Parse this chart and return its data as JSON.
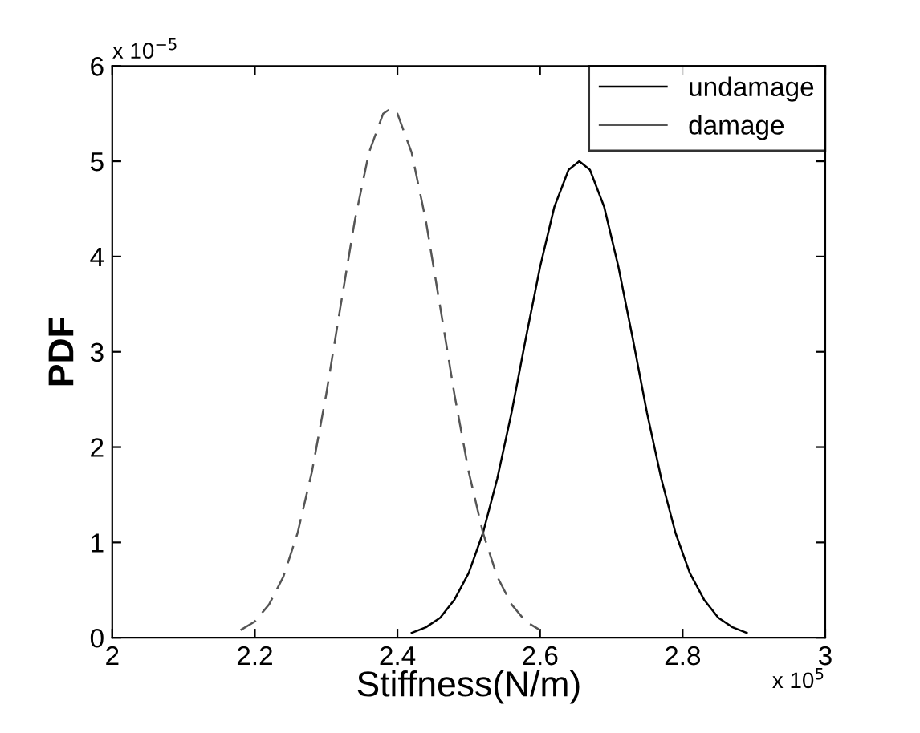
{
  "chart_data": {
    "type": "line",
    "xlabel": "Stiffness(N/m)",
    "ylabel": "PDF",
    "annotations": [
      "x 10$^{−5}$",
      "x 10$^{5}$"
    ],
    "xlim": [
      2,
      3
    ],
    "xticks": [
      2,
      2.2,
      2.4,
      2.6,
      2.8,
      3
    ],
    "ylim": [
      0,
      6
    ],
    "yticks": [
      0,
      1,
      2,
      3,
      4,
      5,
      6
    ],
    "grid": false,
    "legend": "top right",
    "marker": "none",
    "series": [
      {
        "name": "undamage",
        "color": "#000000",
        "line_style": "solid",
        "x": [
          2.42,
          2.44,
          2.46,
          2.48,
          2.5,
          2.52,
          2.54,
          2.56,
          2.58,
          2.6,
          2.62,
          2.64,
          2.655,
          2.67,
          2.69,
          2.71,
          2.73,
          2.75,
          2.77,
          2.79,
          2.81,
          2.83,
          2.85,
          2.87,
          2.89
        ],
        "values": [
          0.05,
          0.11,
          0.21,
          0.4,
          0.68,
          1.1,
          1.67,
          2.36,
          3.14,
          3.89,
          4.52,
          4.91,
          5.0,
          4.91,
          4.52,
          3.89,
          3.14,
          2.36,
          1.67,
          1.1,
          0.68,
          0.4,
          0.21,
          0.11,
          0.05
        ]
      },
      {
        "name": "damage",
        "color": "#555555",
        "line_style": "dashed",
        "x": [
          2.18,
          2.2,
          2.22,
          2.24,
          2.26,
          2.28,
          2.3,
          2.32,
          2.34,
          2.36,
          2.38,
          2.39,
          2.4,
          2.42,
          2.44,
          2.46,
          2.48,
          2.5,
          2.52,
          2.54,
          2.56,
          2.58,
          2.6
        ],
        "values": [
          0.08,
          0.17,
          0.35,
          0.64,
          1.1,
          1.74,
          2.55,
          3.47,
          4.37,
          5.09,
          5.5,
          5.55,
          5.5,
          5.09,
          4.37,
          3.47,
          2.55,
          1.74,
          1.1,
          0.64,
          0.35,
          0.17,
          0.08
        ]
      }
    ]
  }
}
